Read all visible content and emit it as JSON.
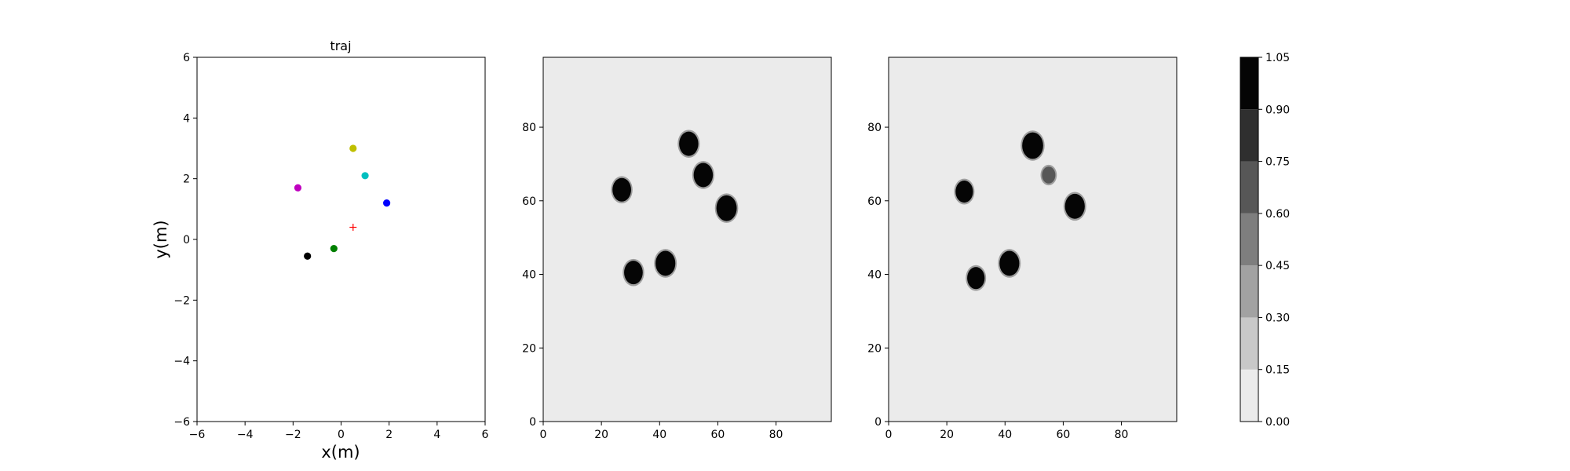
{
  "figure": {
    "background": "#ffffff",
    "panel_background": "#ebebeb"
  },
  "chart_data": [
    {
      "type": "scatter",
      "title": "traj",
      "xlabel": "x(m)",
      "ylabel": "y(m)",
      "xlim": [
        -6,
        6
      ],
      "ylim": [
        -6,
        6
      ],
      "xticks": [
        -6,
        -4,
        -2,
        0,
        2,
        4,
        6
      ],
      "yticks": [
        -6,
        -4,
        -2,
        0,
        2,
        4,
        6
      ],
      "tick_labels": [
        "−6",
        "−4",
        "−2",
        "0",
        "2",
        "4",
        "6"
      ],
      "grid": false,
      "points": [
        {
          "x": 0.5,
          "y": 3.0,
          "color": "#bfbf00",
          "marker": "circle"
        },
        {
          "x": 1.0,
          "y": 2.1,
          "color": "#00bfbf",
          "marker": "circle"
        },
        {
          "x": -1.8,
          "y": 1.7,
          "color": "#bf00bf",
          "marker": "circle"
        },
        {
          "x": 1.9,
          "y": 1.2,
          "color": "#0000ff",
          "marker": "circle"
        },
        {
          "x": -0.3,
          "y": -0.3,
          "color": "#008000",
          "marker": "circle"
        },
        {
          "x": -1.4,
          "y": -0.55,
          "color": "#000000",
          "marker": "circle"
        },
        {
          "x": 0.5,
          "y": 0.4,
          "color": "#ff0000",
          "marker": "plus"
        }
      ]
    },
    {
      "type": "heatmap",
      "xlim": [
        0,
        99
      ],
      "ylim": [
        0,
        99
      ],
      "xticks": [
        0,
        20,
        40,
        60,
        80
      ],
      "yticks": [
        0,
        20,
        40,
        60,
        80
      ],
      "tick_labels": [
        "0",
        "20",
        "40",
        "60",
        "80"
      ],
      "background_value": 0.05,
      "blobs": [
        {
          "x": 50,
          "y": 75.5,
          "r": 3.3,
          "value": 1.0
        },
        {
          "x": 55,
          "y": 67,
          "r": 3.3,
          "value": 1.0
        },
        {
          "x": 63,
          "y": 58,
          "r": 3.5,
          "value": 1.0
        },
        {
          "x": 27,
          "y": 63,
          "r": 3.2,
          "value": 1.0
        },
        {
          "x": 31,
          "y": 40.5,
          "r": 3.2,
          "value": 1.0
        },
        {
          "x": 42,
          "y": 43,
          "r": 3.4,
          "value": 1.0
        }
      ]
    },
    {
      "type": "heatmap",
      "xlim": [
        0,
        99
      ],
      "ylim": [
        0,
        99
      ],
      "xticks": [
        0,
        20,
        40,
        60,
        80
      ],
      "yticks": [
        0,
        20,
        40,
        60,
        80
      ],
      "tick_labels": [
        "0",
        "20",
        "40",
        "60",
        "80"
      ],
      "background_value": 0.05,
      "blobs": [
        {
          "x": 49.5,
          "y": 75,
          "r": 3.6,
          "value": 1.0
        },
        {
          "x": 55,
          "y": 67,
          "r": 2.3,
          "value": 0.6
        },
        {
          "x": 64,
          "y": 58.5,
          "r": 3.4,
          "value": 1.0
        },
        {
          "x": 26,
          "y": 62.5,
          "r": 3.0,
          "value": 1.0
        },
        {
          "x": 30,
          "y": 39,
          "r": 3.0,
          "value": 1.0
        },
        {
          "x": 41.5,
          "y": 43,
          "r": 3.4,
          "value": 1.0
        }
      ]
    },
    {
      "type": "colorbar",
      "levels": [
        0.0,
        0.15,
        0.3,
        0.45,
        0.6,
        0.75,
        0.9,
        1.05
      ],
      "tick_labels": [
        "0.00",
        "0.15",
        "0.30",
        "0.45",
        "0.60",
        "0.75",
        "0.90",
        "1.05"
      ],
      "colors": [
        "#ebebeb",
        "#c8c8c8",
        "#a2a2a2",
        "#7e7e7e",
        "#575757",
        "#2f2f2f",
        "#050505"
      ]
    }
  ]
}
